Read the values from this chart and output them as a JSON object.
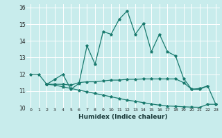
{
  "xlabel": "Humidex (Indice chaleur)",
  "background_color": "#c8ecec",
  "grid_color": "#ffffff",
  "line_color": "#1a7a6e",
  "xlim": [
    -0.5,
    23.5
  ],
  "ylim": [
    10,
    16.2
  ],
  "yticks": [
    10,
    11,
    12,
    13,
    14,
    15,
    16
  ],
  "xticks": [
    0,
    1,
    2,
    3,
    4,
    5,
    6,
    7,
    8,
    9,
    10,
    11,
    12,
    13,
    14,
    15,
    16,
    17,
    18,
    19,
    20,
    21,
    22,
    23
  ],
  "line1_x": [
    0,
    1,
    2,
    3,
    4,
    5,
    6,
    7,
    8,
    9,
    10,
    11,
    12,
    13,
    14,
    15,
    16,
    17,
    18,
    19,
    20,
    21,
    22
  ],
  "line1_y": [
    12.0,
    12.0,
    11.4,
    11.7,
    12.0,
    11.1,
    11.45,
    13.7,
    12.6,
    14.55,
    14.4,
    15.3,
    15.8,
    14.4,
    15.05,
    13.35,
    14.4,
    13.35,
    13.1,
    11.75,
    11.1,
    11.15,
    11.3
  ],
  "line2_x": [
    2,
    3,
    4,
    5,
    6,
    7,
    8,
    9,
    10,
    11,
    12,
    13,
    14,
    15,
    16,
    17,
    18,
    19,
    20,
    21,
    22,
    23
  ],
  "line2_y": [
    11.4,
    11.4,
    11.4,
    11.35,
    11.5,
    11.55,
    11.55,
    11.6,
    11.65,
    11.65,
    11.7,
    11.7,
    11.72,
    11.72,
    11.72,
    11.72,
    11.72,
    11.5,
    11.1,
    11.1,
    11.3,
    10.2
  ],
  "line3_x": [
    2,
    3,
    4,
    5,
    6,
    7,
    8,
    9,
    10,
    11,
    12,
    13,
    14,
    15,
    16,
    17,
    18,
    19,
    20,
    21,
    22,
    23
  ],
  "line3_y": [
    11.4,
    11.35,
    11.25,
    11.15,
    11.05,
    10.95,
    10.85,
    10.75,
    10.65,
    10.55,
    10.45,
    10.38,
    10.3,
    10.22,
    10.15,
    10.1,
    10.08,
    10.05,
    10.03,
    10.02,
    10.2,
    10.2
  ]
}
